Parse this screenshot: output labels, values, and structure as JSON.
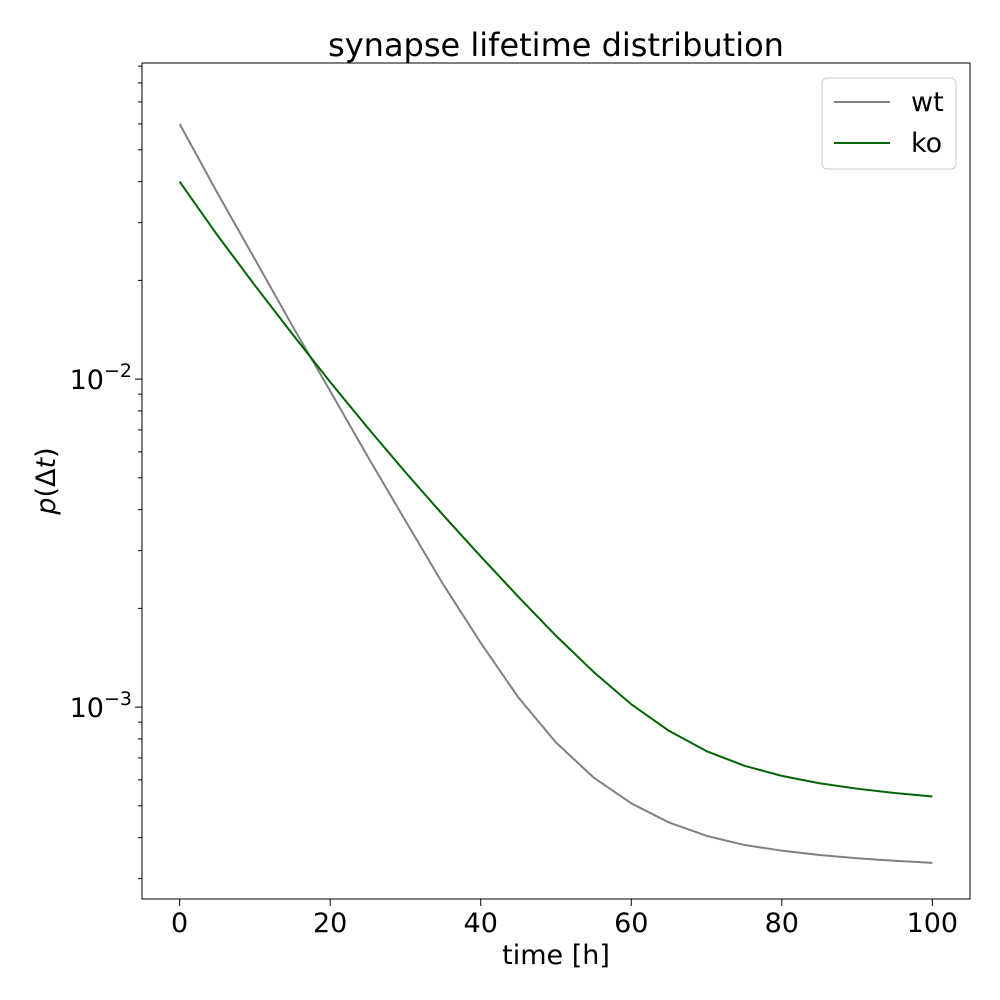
{
  "chart_data": {
    "type": "line",
    "title": "synapse lifetime distribution",
    "xlabel": "time [h]",
    "ylabel_parts": [
      "p",
      "(Δ",
      "t",
      ")"
    ],
    "xlim": [
      -5,
      105
    ],
    "ylim": [
      0.00026,
      0.092
    ],
    "y_scale": "log",
    "grid": false,
    "legend_position": "top-right",
    "x_ticks": [
      {
        "value": 0,
        "label": "0"
      },
      {
        "value": 20,
        "label": "20"
      },
      {
        "value": 40,
        "label": "40"
      },
      {
        "value": 60,
        "label": "60"
      },
      {
        "value": 80,
        "label": "80"
      },
      {
        "value": 100,
        "label": "100"
      }
    ],
    "y_major_ticks": [
      {
        "value": 0.01,
        "base": "10",
        "exp": "−2"
      },
      {
        "value": 0.001,
        "base": "10",
        "exp": "−3"
      }
    ],
    "x": [
      0,
      5,
      10,
      15,
      20,
      25,
      30,
      35,
      40,
      45,
      50,
      55,
      60,
      65,
      70,
      75,
      80,
      85,
      90,
      95,
      100
    ],
    "series": [
      {
        "name": "wt",
        "color": "#808080",
        "values": [
          0.06,
          0.037,
          0.0232,
          0.0145,
          0.0092,
          0.0058,
          0.0037,
          0.00237,
          0.00157,
          0.00107,
          0.00078,
          0.00061,
          0.000509,
          0.000445,
          0.000405,
          0.00038,
          0.000365,
          0.000354,
          0.000346,
          0.00034,
          0.000335
        ]
      },
      {
        "name": "ko",
        "color": "#006400",
        "values": [
          0.04,
          0.0275,
          0.0193,
          0.0137,
          0.0098,
          0.0071,
          0.0052,
          0.00385,
          0.00288,
          0.00217,
          0.00165,
          0.00128,
          0.00102,
          0.000847,
          0.000734,
          0.000663,
          0.000617,
          0.000586,
          0.000564,
          0.000547,
          0.000534
        ]
      }
    ]
  }
}
